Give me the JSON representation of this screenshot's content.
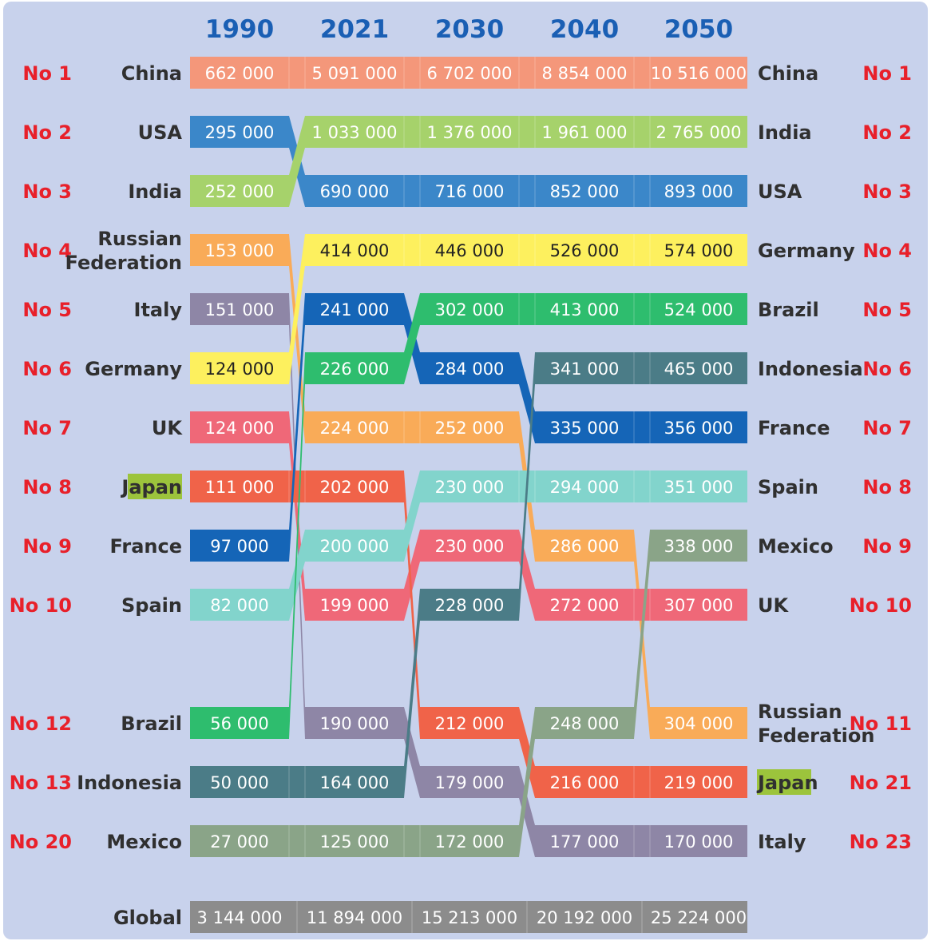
{
  "chart_data": {
    "type": "bump",
    "columns": [
      "1990",
      "2021",
      "2030",
      "2040",
      "2050"
    ],
    "left_labels": [
      {
        "rank": "No 1",
        "name": "China"
      },
      {
        "rank": "No 2",
        "name": "USA"
      },
      {
        "rank": "No 3",
        "name": "India"
      },
      {
        "rank": "No 4",
        "name": [
          "Russian",
          "Federation"
        ]
      },
      {
        "rank": "No 5",
        "name": "Italy"
      },
      {
        "rank": "No 6",
        "name": "Germany"
      },
      {
        "rank": "No 7",
        "name": "UK"
      },
      {
        "rank": "No 8",
        "name": "Japan",
        "highlight": true
      },
      {
        "rank": "No 9",
        "name": "France"
      },
      {
        "rank": "No 10",
        "name": "Spain"
      },
      {
        "rank": "No 12",
        "name": "Brazil"
      },
      {
        "rank": "No 13",
        "name": "Indonesia"
      },
      {
        "rank": "No 20",
        "name": "Mexico"
      }
    ],
    "right_labels": [
      {
        "rank": "No 1",
        "name": "China"
      },
      {
        "rank": "No 2",
        "name": "India"
      },
      {
        "rank": "No 3",
        "name": "USA"
      },
      {
        "rank": "No 4",
        "name": "Germany"
      },
      {
        "rank": "No 5",
        "name": "Brazil"
      },
      {
        "rank": "No 6",
        "name": "Indonesia"
      },
      {
        "rank": "No 7",
        "name": "France"
      },
      {
        "rank": "No 8",
        "name": "Spain"
      },
      {
        "rank": "No 9",
        "name": "Mexico"
      },
      {
        "rank": "No 10",
        "name": "UK"
      },
      {
        "rank": "No 11",
        "name": [
          "Russian",
          "Federation"
        ]
      },
      {
        "rank": "No 21",
        "name": "Japan",
        "highlight": true
      },
      {
        "rank": "No 23",
        "name": "Italy"
      }
    ],
    "series": [
      {
        "id": "china",
        "color": "#f4977a",
        "text": "#ffffff",
        "rows": [
          0,
          0,
          0,
          0,
          0
        ],
        "values": [
          "662 000",
          "5 091 000",
          "6 702 000",
          "8 854 000",
          "10 516 000"
        ]
      },
      {
        "id": "usa",
        "color": "#3b87c9",
        "text": "#ffffff",
        "rows": [
          1,
          2,
          2,
          2,
          2
        ],
        "values": [
          "295 000",
          "690 000",
          "716 000",
          "852 000",
          "893 000"
        ]
      },
      {
        "id": "india",
        "color": "#a6d26b",
        "text": "#ffffff",
        "rows": [
          2,
          1,
          1,
          1,
          1
        ],
        "values": [
          "252 000",
          "1 033 000",
          "1 376 000",
          "1 961 000",
          "2 765 000"
        ]
      },
      {
        "id": "russia",
        "color": "#f9ab58",
        "text": "#ffffff",
        "rows": [
          3,
          6,
          6,
          8,
          10
        ],
        "values": [
          "153 000",
          "224 000",
          "252 000",
          "286 000",
          "304 000"
        ]
      },
      {
        "id": "italy",
        "color": "#8e86a6",
        "text": "#ffffff",
        "rows": [
          4,
          10,
          11,
          12,
          12
        ],
        "values": [
          "151 000",
          "190 000",
          "179 000",
          "177 000",
          "170 000"
        ]
      },
      {
        "id": "germany",
        "color": "#fdf05e",
        "text": "#222222",
        "rows": [
          5,
          3,
          3,
          3,
          3
        ],
        "values": [
          "124 000",
          "414 000",
          "446 000",
          "526 000",
          "574 000"
        ]
      },
      {
        "id": "uk",
        "color": "#ef6878",
        "text": "#ffffff",
        "rows": [
          6,
          9,
          8,
          9,
          9
        ],
        "values": [
          "124 000",
          "199 000",
          "230 000",
          "272 000",
          "307 000"
        ]
      },
      {
        "id": "japan",
        "color": "#f06349",
        "text": "#ffffff",
        "rows": [
          7,
          7,
          10,
          11,
          11
        ],
        "values": [
          "111 000",
          "202 000",
          "212 000",
          "216 000",
          "219 000"
        ]
      },
      {
        "id": "france",
        "color": "#1565b7",
        "text": "#ffffff",
        "rows": [
          8,
          4,
          5,
          6,
          6
        ],
        "values": [
          "97 000",
          "241 000",
          "284 000",
          "335 000",
          "356 000"
        ]
      },
      {
        "id": "spain",
        "color": "#82d4cc",
        "text": "#ffffff",
        "rows": [
          9,
          8,
          7,
          7,
          7
        ],
        "values": [
          "82 000",
          "200 000",
          "230 000",
          "294 000",
          "351 000"
        ]
      },
      {
        "id": "brazil",
        "color": "#2ebd6e",
        "text": "#ffffff",
        "rows": [
          10,
          5,
          4,
          4,
          4
        ],
        "values": [
          "56 000",
          "226 000",
          "302 000",
          "413 000",
          "524 000"
        ]
      },
      {
        "id": "indonesia",
        "color": "#4b7c87",
        "text": "#ffffff",
        "rows": [
          11,
          11,
          9,
          5,
          5
        ],
        "values": [
          "50 000",
          "164 000",
          "228 000",
          "341 000",
          "465 000"
        ]
      },
      {
        "id": "mexico",
        "color": "#8aa488",
        "text": "#ffffff",
        "rows": [
          12,
          12,
          12,
          10,
          8
        ],
        "values": [
          "27 000",
          "125 000",
          "172 000",
          "248 000",
          "338 000"
        ]
      }
    ],
    "global": {
      "label": "Global",
      "values": [
        "3 144 000",
        "11 894 000",
        "15 213 000",
        "20 192 000",
        "25 224 000"
      ]
    }
  },
  "colors": {
    "background": "#c8d2ec",
    "rank": "#e8202a",
    "year": "#1a5fb4",
    "japan_highlight": "#9cc43c",
    "global_bar": "#8c8c8c"
  }
}
